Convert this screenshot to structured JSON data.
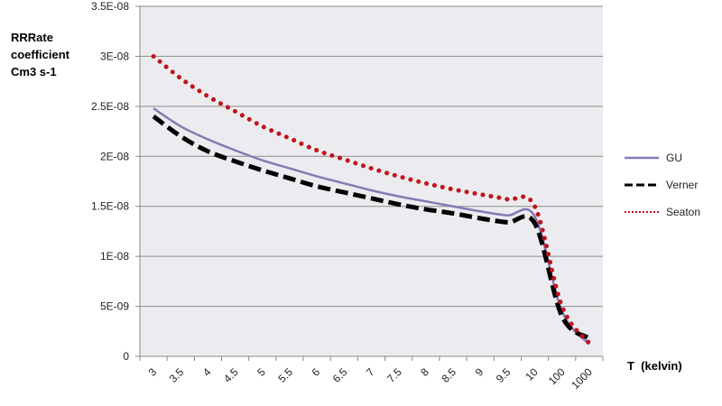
{
  "chart_data": {
    "type": "line",
    "ylabel": [
      "RRRate",
      "coefficient",
      "Cm3  s-1"
    ],
    "xlabel": "T  (kelvin)",
    "categories": [
      "3",
      "3.5",
      "4",
      "4.5",
      "5",
      "5.5",
      "6",
      "6.5",
      "7",
      "7.5",
      "8",
      "8.5",
      "9",
      "9.5",
      "10",
      "100",
      "1000"
    ],
    "yticks": [
      "0",
      "5E-09",
      "1E-08",
      "1.5E-08",
      "2E-08",
      "2.5E-08",
      "3E-08",
      "3.5E-08"
    ],
    "ylim": [
      0,
      3.5e-08
    ],
    "grid": true,
    "legend": "right",
    "series": [
      {
        "name": "GU",
        "color": "#8a78b4",
        "style": "solid",
        "values": [
          2.48e-08,
          2.3e-08,
          2.17e-08,
          2.06e-08,
          1.96e-08,
          1.88e-08,
          1.8e-08,
          1.73e-08,
          1.66e-08,
          1.6e-08,
          1.55e-08,
          1.5e-08,
          1.45e-08,
          1.41e-08,
          1.4e-08,
          4.5e-09,
          1.2e-09
        ]
      },
      {
        "name": "Verner",
        "color": "#000000",
        "style": "dashed",
        "values": [
          2.4e-08,
          2.2e-08,
          2.05e-08,
          1.95e-08,
          1.86e-08,
          1.78e-08,
          1.7e-08,
          1.64e-08,
          1.58e-08,
          1.52e-08,
          1.47e-08,
          1.43e-08,
          1.38e-08,
          1.34e-08,
          1.33e-08,
          4e-09,
          1.8e-09
        ]
      },
      {
        "name": "Seaton",
        "color": "#c0141c",
        "style": "dotted",
        "values": [
          3e-08,
          2.78e-08,
          2.6e-08,
          2.45e-08,
          2.3e-08,
          2.18e-08,
          2.06e-08,
          1.97e-08,
          1.88e-08,
          1.8e-08,
          1.73e-08,
          1.67e-08,
          1.62e-08,
          1.57e-08,
          1.5e-08,
          5e-09,
          1.3e-09
        ]
      }
    ]
  }
}
